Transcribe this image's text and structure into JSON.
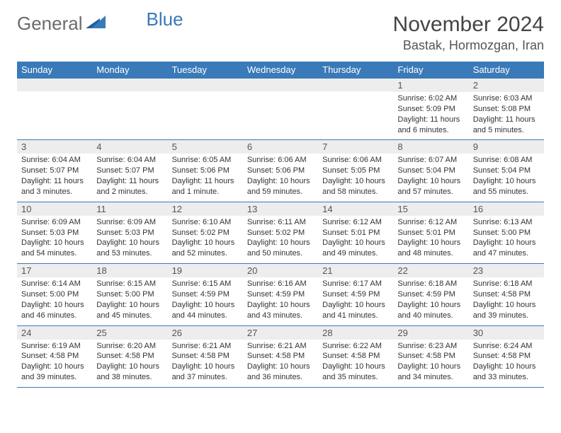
{
  "logo": {
    "part1": "General",
    "part2": "Blue"
  },
  "title": "November 2024",
  "location": "Bastak, Hormozgan, Iran",
  "colors": {
    "header_bg": "#3a7ab8",
    "header_text": "#ffffff",
    "daynum_bg": "#ededed",
    "border": "#3a7ab8",
    "body_text": "#333333"
  },
  "daysOfWeek": [
    "Sunday",
    "Monday",
    "Tuesday",
    "Wednesday",
    "Thursday",
    "Friday",
    "Saturday"
  ],
  "weeks": [
    [
      {
        "n": "",
        "sr": "",
        "ss": "",
        "dl": ""
      },
      {
        "n": "",
        "sr": "",
        "ss": "",
        "dl": ""
      },
      {
        "n": "",
        "sr": "",
        "ss": "",
        "dl": ""
      },
      {
        "n": "",
        "sr": "",
        "ss": "",
        "dl": ""
      },
      {
        "n": "",
        "sr": "",
        "ss": "",
        "dl": ""
      },
      {
        "n": "1",
        "sr": "Sunrise: 6:02 AM",
        "ss": "Sunset: 5:09 PM",
        "dl": "Daylight: 11 hours and 6 minutes."
      },
      {
        "n": "2",
        "sr": "Sunrise: 6:03 AM",
        "ss": "Sunset: 5:08 PM",
        "dl": "Daylight: 11 hours and 5 minutes."
      }
    ],
    [
      {
        "n": "3",
        "sr": "Sunrise: 6:04 AM",
        "ss": "Sunset: 5:07 PM",
        "dl": "Daylight: 11 hours and 3 minutes."
      },
      {
        "n": "4",
        "sr": "Sunrise: 6:04 AM",
        "ss": "Sunset: 5:07 PM",
        "dl": "Daylight: 11 hours and 2 minutes."
      },
      {
        "n": "5",
        "sr": "Sunrise: 6:05 AM",
        "ss": "Sunset: 5:06 PM",
        "dl": "Daylight: 11 hours and 1 minute."
      },
      {
        "n": "6",
        "sr": "Sunrise: 6:06 AM",
        "ss": "Sunset: 5:06 PM",
        "dl": "Daylight: 10 hours and 59 minutes."
      },
      {
        "n": "7",
        "sr": "Sunrise: 6:06 AM",
        "ss": "Sunset: 5:05 PM",
        "dl": "Daylight: 10 hours and 58 minutes."
      },
      {
        "n": "8",
        "sr": "Sunrise: 6:07 AM",
        "ss": "Sunset: 5:04 PM",
        "dl": "Daylight: 10 hours and 57 minutes."
      },
      {
        "n": "9",
        "sr": "Sunrise: 6:08 AM",
        "ss": "Sunset: 5:04 PM",
        "dl": "Daylight: 10 hours and 55 minutes."
      }
    ],
    [
      {
        "n": "10",
        "sr": "Sunrise: 6:09 AM",
        "ss": "Sunset: 5:03 PM",
        "dl": "Daylight: 10 hours and 54 minutes."
      },
      {
        "n": "11",
        "sr": "Sunrise: 6:09 AM",
        "ss": "Sunset: 5:03 PM",
        "dl": "Daylight: 10 hours and 53 minutes."
      },
      {
        "n": "12",
        "sr": "Sunrise: 6:10 AM",
        "ss": "Sunset: 5:02 PM",
        "dl": "Daylight: 10 hours and 52 minutes."
      },
      {
        "n": "13",
        "sr": "Sunrise: 6:11 AM",
        "ss": "Sunset: 5:02 PM",
        "dl": "Daylight: 10 hours and 50 minutes."
      },
      {
        "n": "14",
        "sr": "Sunrise: 6:12 AM",
        "ss": "Sunset: 5:01 PM",
        "dl": "Daylight: 10 hours and 49 minutes."
      },
      {
        "n": "15",
        "sr": "Sunrise: 6:12 AM",
        "ss": "Sunset: 5:01 PM",
        "dl": "Daylight: 10 hours and 48 minutes."
      },
      {
        "n": "16",
        "sr": "Sunrise: 6:13 AM",
        "ss": "Sunset: 5:00 PM",
        "dl": "Daylight: 10 hours and 47 minutes."
      }
    ],
    [
      {
        "n": "17",
        "sr": "Sunrise: 6:14 AM",
        "ss": "Sunset: 5:00 PM",
        "dl": "Daylight: 10 hours and 46 minutes."
      },
      {
        "n": "18",
        "sr": "Sunrise: 6:15 AM",
        "ss": "Sunset: 5:00 PM",
        "dl": "Daylight: 10 hours and 45 minutes."
      },
      {
        "n": "19",
        "sr": "Sunrise: 6:15 AM",
        "ss": "Sunset: 4:59 PM",
        "dl": "Daylight: 10 hours and 44 minutes."
      },
      {
        "n": "20",
        "sr": "Sunrise: 6:16 AM",
        "ss": "Sunset: 4:59 PM",
        "dl": "Daylight: 10 hours and 43 minutes."
      },
      {
        "n": "21",
        "sr": "Sunrise: 6:17 AM",
        "ss": "Sunset: 4:59 PM",
        "dl": "Daylight: 10 hours and 41 minutes."
      },
      {
        "n": "22",
        "sr": "Sunrise: 6:18 AM",
        "ss": "Sunset: 4:59 PM",
        "dl": "Daylight: 10 hours and 40 minutes."
      },
      {
        "n": "23",
        "sr": "Sunrise: 6:18 AM",
        "ss": "Sunset: 4:58 PM",
        "dl": "Daylight: 10 hours and 39 minutes."
      }
    ],
    [
      {
        "n": "24",
        "sr": "Sunrise: 6:19 AM",
        "ss": "Sunset: 4:58 PM",
        "dl": "Daylight: 10 hours and 39 minutes."
      },
      {
        "n": "25",
        "sr": "Sunrise: 6:20 AM",
        "ss": "Sunset: 4:58 PM",
        "dl": "Daylight: 10 hours and 38 minutes."
      },
      {
        "n": "26",
        "sr": "Sunrise: 6:21 AM",
        "ss": "Sunset: 4:58 PM",
        "dl": "Daylight: 10 hours and 37 minutes."
      },
      {
        "n": "27",
        "sr": "Sunrise: 6:21 AM",
        "ss": "Sunset: 4:58 PM",
        "dl": "Daylight: 10 hours and 36 minutes."
      },
      {
        "n": "28",
        "sr": "Sunrise: 6:22 AM",
        "ss": "Sunset: 4:58 PM",
        "dl": "Daylight: 10 hours and 35 minutes."
      },
      {
        "n": "29",
        "sr": "Sunrise: 6:23 AM",
        "ss": "Sunset: 4:58 PM",
        "dl": "Daylight: 10 hours and 34 minutes."
      },
      {
        "n": "30",
        "sr": "Sunrise: 6:24 AM",
        "ss": "Sunset: 4:58 PM",
        "dl": "Daylight: 10 hours and 33 minutes."
      }
    ]
  ]
}
